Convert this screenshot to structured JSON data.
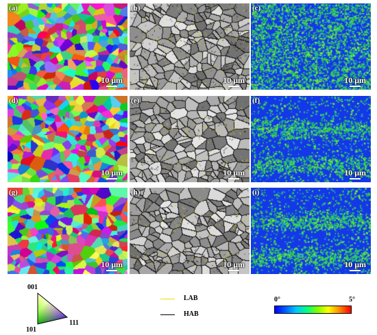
{
  "panels": [
    {
      "label": "(a)",
      "type": "ipf",
      "scale": "10 μm"
    },
    {
      "label": "(b)",
      "type": "bc",
      "band": "none",
      "scale": "10 μm"
    },
    {
      "label": "(c)",
      "type": "kam",
      "band": "none",
      "scale": "10 μm"
    },
    {
      "label": "(d)",
      "type": "ipf",
      "scale": "10 μm"
    },
    {
      "label": "(e)",
      "type": "bc",
      "band": "two",
      "scale": "10 μm"
    },
    {
      "label": "(f)",
      "type": "kam",
      "band": "two",
      "scale": "10 μm"
    },
    {
      "label": "(g)",
      "type": "ipf",
      "scale": "10 μm"
    },
    {
      "label": "(h)",
      "type": "bc",
      "band": "two",
      "scale": "10 μm"
    },
    {
      "label": "(i)",
      "type": "kam",
      "band": "two",
      "scale": "10 μm"
    }
  ],
  "ipf_legend": {
    "top": "001",
    "left": "101",
    "right": "111"
  },
  "boundary_legend": [
    {
      "label": "LAB",
      "color": "#e8e000"
    },
    {
      "label": "HAB",
      "color": "#000000"
    }
  ],
  "colorbar": {
    "min": "0°",
    "max": "5°"
  }
}
